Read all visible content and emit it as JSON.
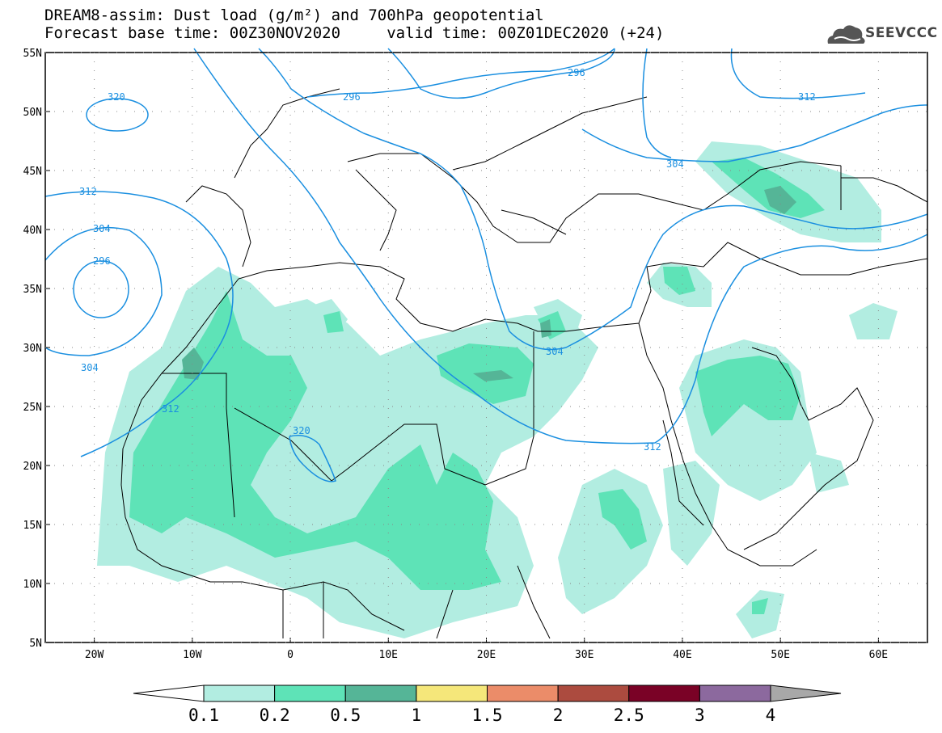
{
  "header": {
    "title_line1": "DREAM8-assim: Dust load (g/m²) and 700hPa geopotential",
    "title_line2": "Forecast base time: 00Z30NOV2020     valid time: 00Z01DEC2020 (+24)"
  },
  "logo": {
    "text": "SEEVCCC",
    "icon": "cloud-icon"
  },
  "map": {
    "lon_range": [
      -25,
      65
    ],
    "lat_range": [
      5,
      55
    ],
    "lat_labels": [
      "55N",
      "50N",
      "45N",
      "40N",
      "35N",
      "30N",
      "25N",
      "20N",
      "15N",
      "10N",
      "5N"
    ],
    "lon_labels": [
      "20W",
      "10W",
      "0",
      "10E",
      "20E",
      "30E",
      "40E",
      "50E",
      "60E"
    ],
    "contour_labels": [
      "320",
      "312",
      "304",
      "296",
      "296",
      "296",
      "312",
      "304",
      "304",
      "304",
      "312",
      "320",
      "312"
    ],
    "contour_color": "#1a8fe0"
  },
  "colorbar": {
    "ticks": [
      "0.1",
      "0.2",
      "0.5",
      "1",
      "1.5",
      "2",
      "2.5",
      "3",
      "4"
    ],
    "colors": [
      "#ffffff",
      "#b2ede1",
      "#5ee3b7",
      "#55b597",
      "#f5e77a",
      "#eb8c69",
      "#ac4b3f",
      "#7a0226",
      "#8c699e",
      "#a8a8a8"
    ]
  }
}
